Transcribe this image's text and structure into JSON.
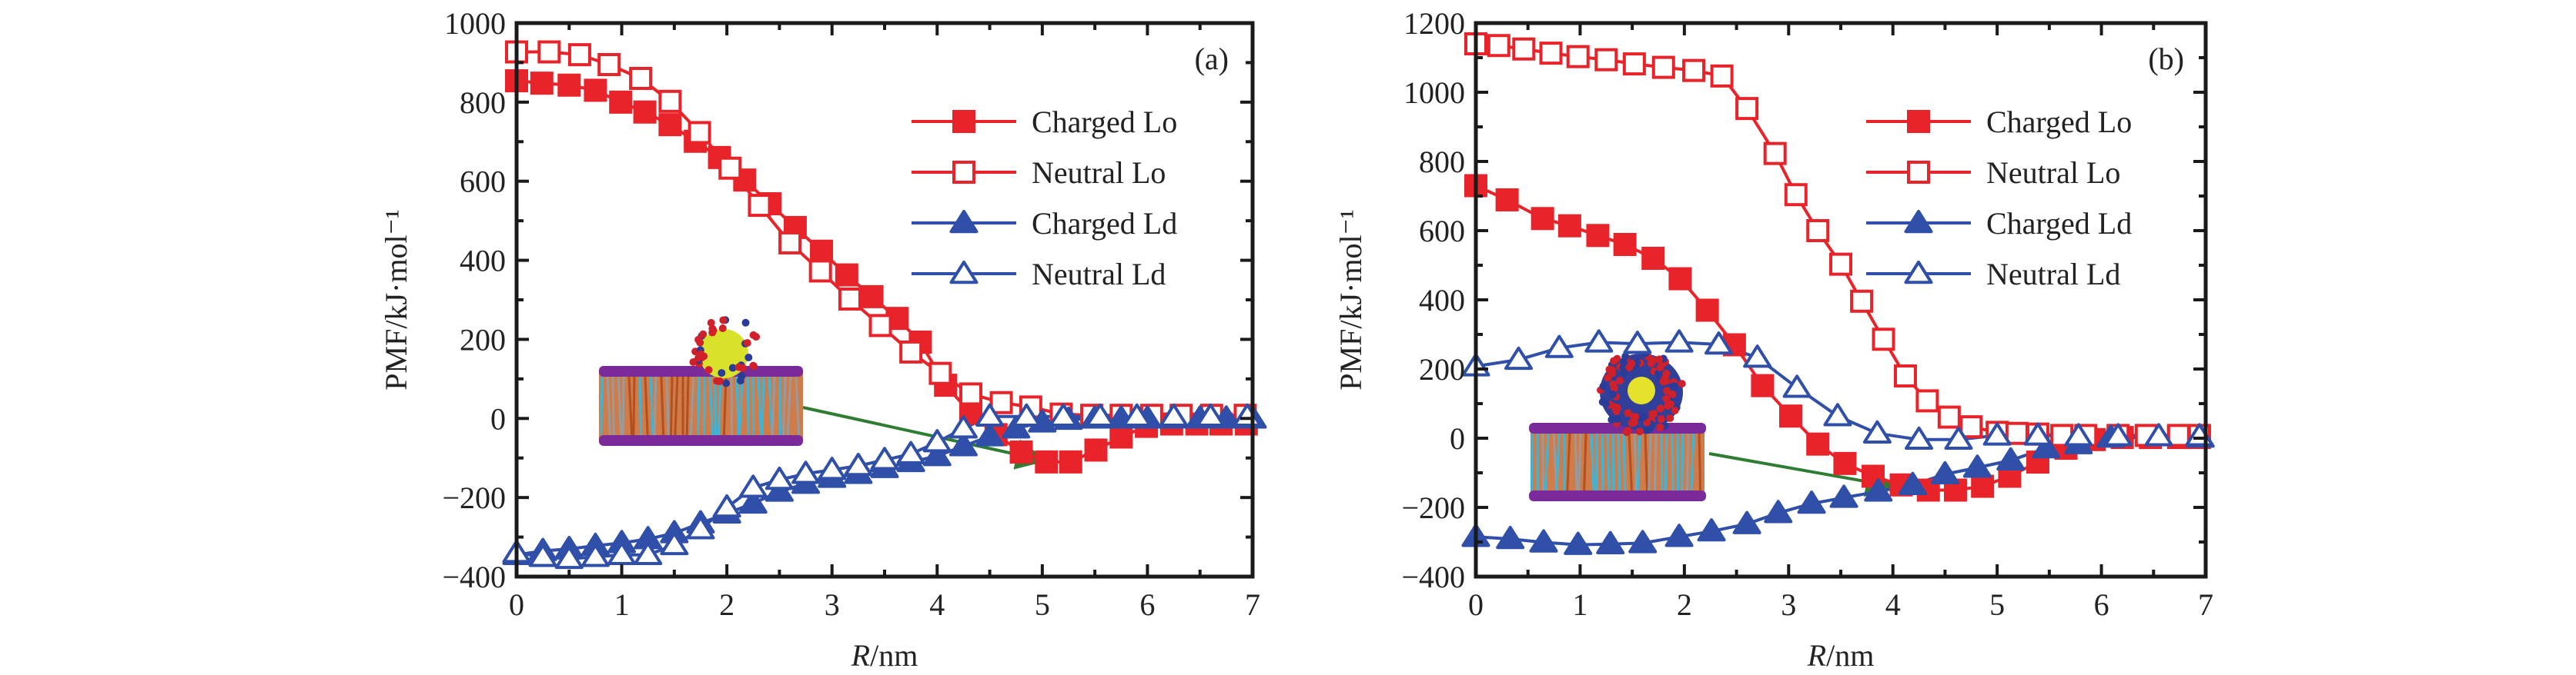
{
  "figure": {
    "panels": [
      "(a)",
      "(b)"
    ]
  },
  "colors": {
    "red": "#e8232a",
    "blue": "#2f4fa8",
    "arrow": "#2e7d32",
    "axis": "#1a1a1a"
  },
  "chart_data": [
    {
      "type": "line",
      "panel_label": "(a)",
      "title": "",
      "xlabel": "R/nm",
      "ylabel": "PMF/kJ·mol⁻¹",
      "xlim": [
        0,
        7
      ],
      "ylim": [
        -400,
        1000
      ],
      "xticks": [
        0,
        1,
        2,
        3,
        4,
        5,
        6,
        7
      ],
      "yticks": [
        -400,
        -200,
        0,
        200,
        400,
        600,
        800,
        1000
      ],
      "ytick_labels": [
        "−400",
        "−200",
        "0",
        "200",
        "400",
        "600",
        "800",
        "1000"
      ],
      "grid": false,
      "legend_position": "top-right",
      "inset": "nanoparticle adsorbed on membrane (arrow to PMF minimum)",
      "series": [
        {
          "name": "Charged Lo",
          "color": "red",
          "marker": "square-filled",
          "x": [
            0,
            0.24,
            0.5,
            0.75,
            0.99,
            1.22,
            1.46,
            1.7,
            1.93,
            2.17,
            2.41,
            2.65,
            2.9,
            3.14,
            3.38,
            3.62,
            3.84,
            4.08,
            4.32,
            4.56,
            4.8,
            5.04,
            5.27,
            5.51,
            5.75,
            5.99,
            6.23,
            6.47,
            6.7,
            6.94
          ],
          "y": [
            854,
            848,
            843,
            830,
            800,
            775,
            743,
            701,
            660,
            603,
            543,
            483,
            423,
            363,
            308,
            253,
            193,
            84,
            13,
            -41,
            -85,
            -110,
            -110,
            -80,
            -47,
            -20,
            -14,
            -14,
            -14,
            -14
          ]
        },
        {
          "name": "Neutral Lo",
          "color": "red",
          "marker": "square-open",
          "x": [
            0,
            0.31,
            0.6,
            0.88,
            1.18,
            1.46,
            1.74,
            2.03,
            2.31,
            2.6,
            2.89,
            3.17,
            3.46,
            3.75,
            4.03,
            4.32,
            4.61,
            4.89,
            5.18,
            5.47,
            5.75,
            6.04,
            6.32,
            6.61,
            6.93
          ],
          "y": [
            927,
            927,
            920,
            895,
            860,
            802,
            723,
            633,
            539,
            444,
            373,
            302,
            235,
            168,
            114,
            62,
            40,
            29,
            11,
            8,
            8,
            8,
            8,
            8,
            8
          ]
        },
        {
          "name": "Charged Ld",
          "color": "blue",
          "marker": "triangle-filled",
          "x": [
            0,
            0.25,
            0.5,
            0.75,
            1.0,
            1.25,
            1.5,
            1.75,
            2.0,
            2.25,
            2.5,
            2.75,
            3.0,
            3.25,
            3.5,
            3.75,
            4.0,
            4.25,
            4.5,
            4.75,
            5.0,
            5.25,
            5.5,
            5.75,
            6.0,
            6.25,
            6.5,
            6.75,
            7.0
          ],
          "y": [
            -345,
            -335,
            -330,
            -322,
            -315,
            -305,
            -290,
            -265,
            -240,
            -215,
            -185,
            -165,
            -150,
            -140,
            -125,
            -110,
            -95,
            -70,
            -45,
            -25,
            -10,
            -3,
            0,
            0,
            0,
            0,
            0,
            0,
            0
          ]
        },
        {
          "name": "Neutral Ld",
          "color": "blue",
          "marker": "triangle-open",
          "x": [
            0,
            0.25,
            0.5,
            0.75,
            1.0,
            1.25,
            1.5,
            1.75,
            2.0,
            2.25,
            2.5,
            2.75,
            3.0,
            3.25,
            3.5,
            3.75,
            4.0,
            4.25,
            4.5,
            4.85,
            5.2,
            5.55,
            5.9,
            6.25,
            6.6,
            6.95
          ],
          "y": [
            -340,
            -350,
            -355,
            -350,
            -345,
            -345,
            -320,
            -280,
            -225,
            -175,
            -155,
            -140,
            -130,
            -120,
            -105,
            -90,
            -60,
            -25,
            5,
            5,
            5,
            5,
            5,
            5,
            5,
            5
          ]
        }
      ]
    },
    {
      "type": "line",
      "panel_label": "(b)",
      "title": "",
      "xlabel": "R/nm",
      "ylabel": "PMF/kJ·mol⁻¹",
      "xlim": [
        0,
        7
      ],
      "ylim": [
        -400,
        1200
      ],
      "xticks": [
        0,
        1,
        2,
        3,
        4,
        5,
        6,
        7
      ],
      "yticks": [
        -400,
        -200,
        0,
        200,
        400,
        600,
        800,
        1000,
        1200
      ],
      "ytick_labels": [
        "−400",
        "−200",
        "0",
        "200",
        "400",
        "600",
        "800",
        "1000",
        "1200"
      ],
      "grid": false,
      "legend_position": "top-right",
      "inset": "micelle adsorbed on membrane (arrow to PMF minimum)",
      "series": [
        {
          "name": "Charged Lo",
          "color": "red",
          "marker": "square-filled",
          "x": [
            0,
            0.3,
            0.64,
            0.9,
            1.17,
            1.43,
            1.7,
            1.96,
            2.22,
            2.48,
            2.75,
            3.02,
            3.28,
            3.54,
            3.81,
            4.08,
            4.34,
            4.6,
            4.86,
            5.12,
            5.39,
            5.66,
            5.93,
            6.2,
            6.47,
            6.74,
            6.94
          ],
          "y": [
            730,
            689,
            635,
            614,
            586,
            560,
            520,
            461,
            370,
            270,
            152,
            64,
            -17,
            -73,
            -110,
            -135,
            -150,
            -150,
            -139,
            -110,
            -69,
            -29,
            -4,
            2,
            2,
            2,
            2
          ]
        },
        {
          "name": "Neutral Lo",
          "color": "red",
          "marker": "square-open",
          "x": [
            0,
            0.22,
            0.46,
            0.72,
            0.98,
            1.25,
            1.52,
            1.8,
            2.09,
            2.36,
            2.6,
            2.87,
            3.07,
            3.28,
            3.5,
            3.7,
            3.91,
            4.12,
            4.33,
            4.54,
            4.75,
            5.0,
            5.19,
            5.39,
            5.62,
            5.85,
            6.16,
            6.43,
            6.74,
            6.94
          ],
          "y": [
            1140,
            1135,
            1125,
            1113,
            1103,
            1094,
            1082,
            1072,
            1063,
            1047,
            953,
            823,
            704,
            600,
            503,
            396,
            286,
            180,
            108,
            61,
            33,
            17,
            14,
            12,
            8,
            8,
            8,
            8,
            8,
            8
          ]
        },
        {
          "name": "Charged Ld",
          "color": "blue",
          "marker": "triangle-filled",
          "x": [
            0,
            0.33,
            0.65,
            0.98,
            1.29,
            1.6,
            1.95,
            2.26,
            2.6,
            2.9,
            3.22,
            3.53,
            3.86,
            4.19,
            4.5,
            4.81,
            5.13,
            5.47,
            5.78,
            6.09,
            6.95
          ],
          "y": [
            -285,
            -291,
            -301,
            -308,
            -306,
            -303,
            -285,
            -269,
            -248,
            -216,
            -189,
            -172,
            -154,
            -135,
            -104,
            -85,
            -64,
            -29,
            -17,
            2,
            2
          ]
        },
        {
          "name": "Neutral Ld",
          "color": "blue",
          "marker": "triangle-open",
          "x": [
            0,
            0.41,
            0.8,
            1.18,
            1.55,
            1.95,
            2.33,
            2.7,
            3.08,
            3.47,
            3.85,
            4.25,
            4.63,
            5.0,
            5.39,
            5.78,
            6.16,
            6.55,
            6.94
          ],
          "y": [
            208,
            227,
            261,
            277,
            273,
            277,
            271,
            233,
            146,
            64,
            14,
            -4,
            -4,
            8,
            8,
            6,
            6,
            6,
            6
          ]
        }
      ]
    }
  ]
}
